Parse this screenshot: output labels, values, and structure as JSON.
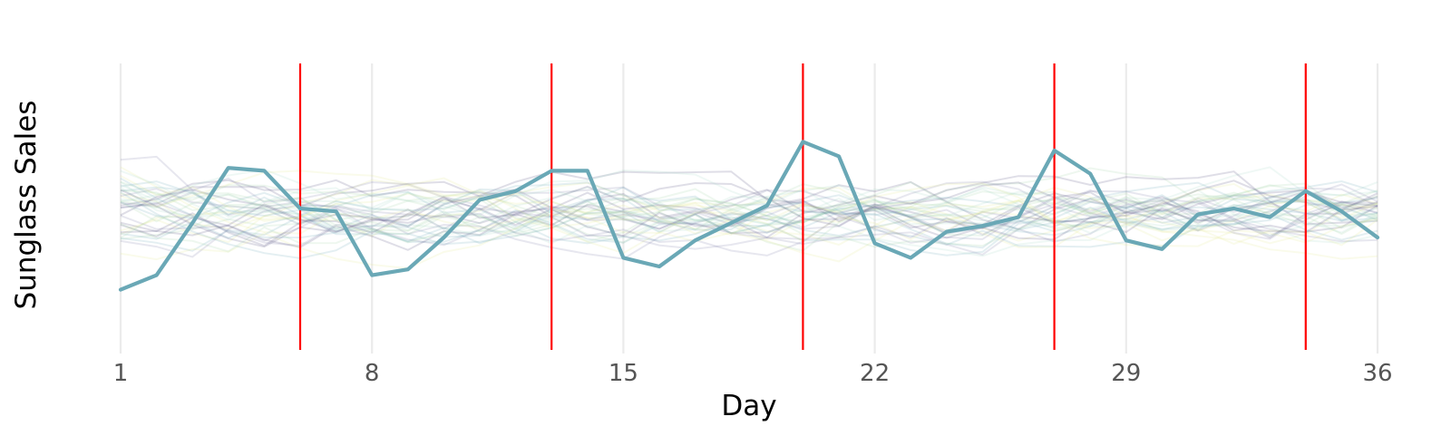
{
  "chart_data": {
    "type": "line",
    "title": "",
    "xlabel": "Day",
    "ylabel": "Sunglass Sales",
    "x_ticks": [
      1,
      8,
      15,
      22,
      29,
      36
    ],
    "xlim": [
      1,
      36
    ],
    "ylim": [
      0,
      100
    ],
    "grid": "vertical gridlines at x ticks",
    "vlines": {
      "x": [
        6,
        13,
        20,
        27,
        34
      ],
      "color": "#ff0000"
    },
    "highlight": {
      "color": "#6aa8b6",
      "values": [
        22,
        27,
        45,
        64,
        63,
        50,
        49,
        27,
        29,
        40,
        53,
        56,
        63,
        63,
        33,
        30,
        39,
        45,
        51,
        73,
        68,
        38,
        33,
        42,
        44,
        47,
        70,
        62,
        39,
        36,
        48,
        50,
        47,
        56,
        49,
        40
      ]
    },
    "background_series": {
      "count": 40,
      "opacity": 0.18,
      "colors": [
        "#4b4a78",
        "#6aa8b6",
        "#9fd3a8",
        "#e6e98f",
        "#7b7aa6",
        "#a8d8c8"
      ]
    }
  }
}
